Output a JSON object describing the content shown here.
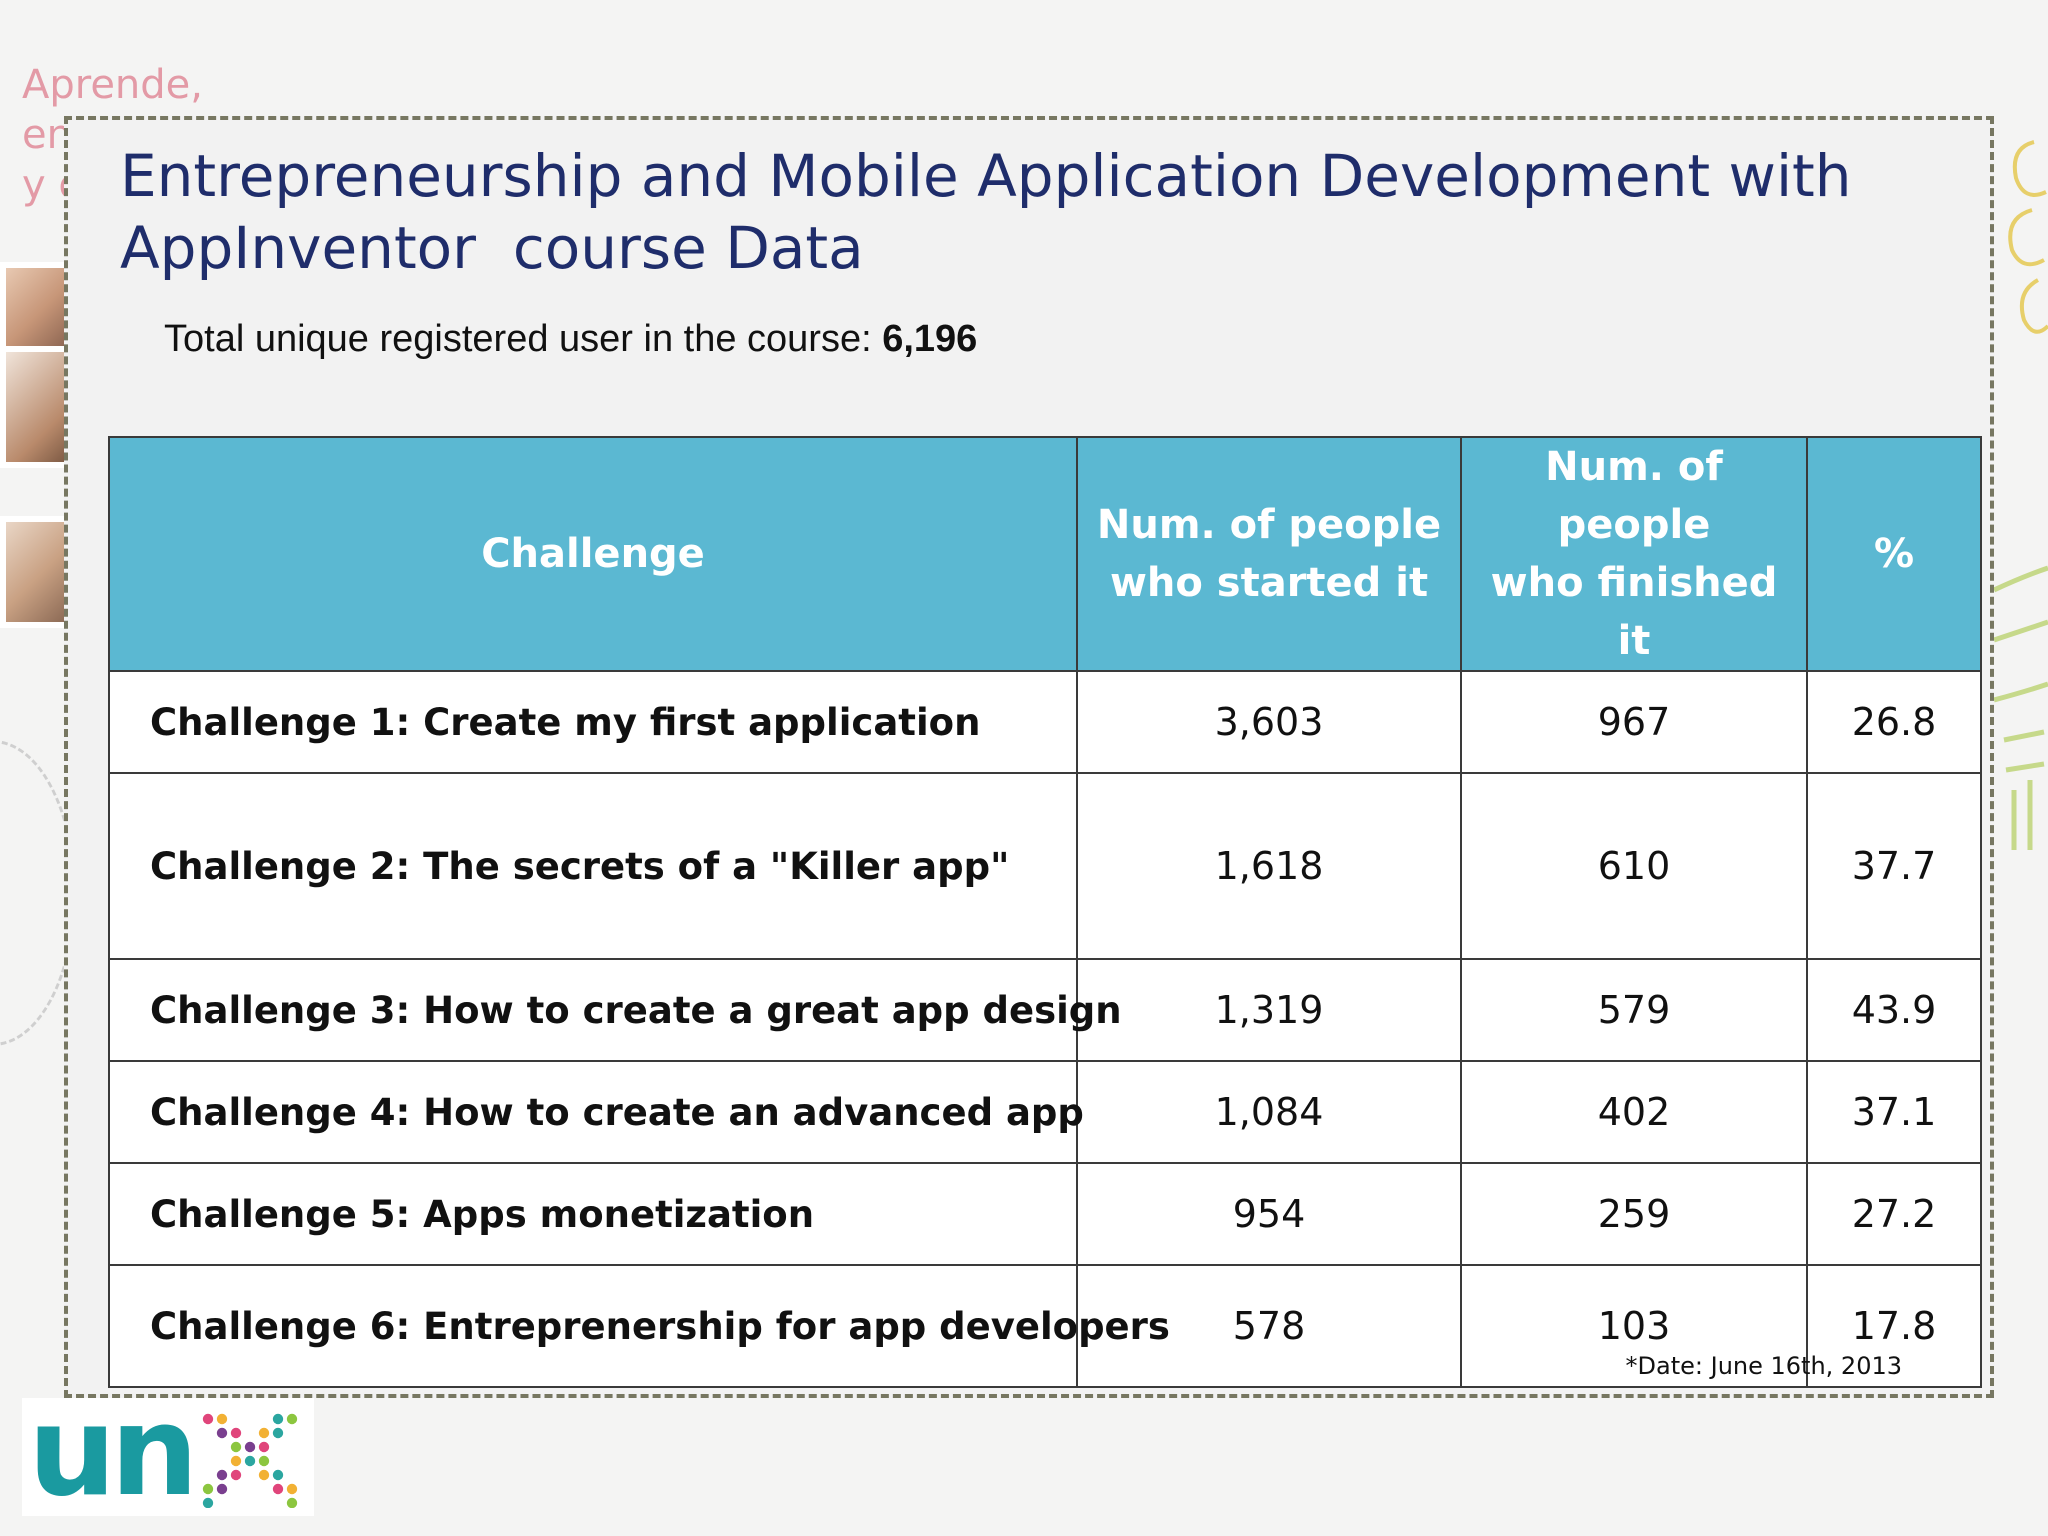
{
  "background": {
    "text_lines": [
      "Aprende,",
      "en",
      "y c"
    ]
  },
  "slide": {
    "title": "Entrepreneurship and Mobile Application Development with\nAppInventor  course Data",
    "subtitle_label": "Total unique registered user in the course: ",
    "subtitle_value": "6,196",
    "footnote": "*Date: June 16th, 2013"
  },
  "table": {
    "headers": {
      "challenge": "Challenge",
      "started_line1": "Num. of people",
      "started_line2": "who started it",
      "finished_line1": "Num. of people",
      "finished_line2": "who finished it",
      "percent": "%"
    },
    "rows": [
      {
        "challenge": "Challenge 1: Create my first application",
        "started": "3,603",
        "finished": "967",
        "percent": "26.8"
      },
      {
        "challenge": "Challenge 2: The secrets of a \"Killer app\"",
        "started": "1,618",
        "finished": "610",
        "percent": "37.7"
      },
      {
        "challenge": "Challenge 3: How to create a great app design",
        "started": "1,319",
        "finished": "579",
        "percent": "43.9"
      },
      {
        "challenge": "Challenge 4: How to create an advanced app",
        "started": "1,084",
        "finished": "402",
        "percent": "37.1"
      },
      {
        "challenge": "Challenge 5: Apps monetization",
        "started": "954",
        "finished": "259",
        "percent": "27.2"
      },
      {
        "challenge": "Challenge 6: Entreprenership for app developers",
        "started": "578",
        "finished": "103",
        "percent": "17.8"
      }
    ],
    "colors": {
      "header_bg": "#5bb8d2",
      "header_text": "#ffffff",
      "border": "#3a3a3a"
    }
  },
  "logo": {
    "text": "un",
    "color": "#1a9aa0",
    "dot_colors": [
      "#e0457b",
      "#f2b134",
      "#2ba6a0",
      "#8cc63f",
      "#7a3f8f"
    ]
  },
  "colors": {
    "title": "#1f2d6b",
    "slide_border": "#777761",
    "background_text": "#e39aa6"
  }
}
